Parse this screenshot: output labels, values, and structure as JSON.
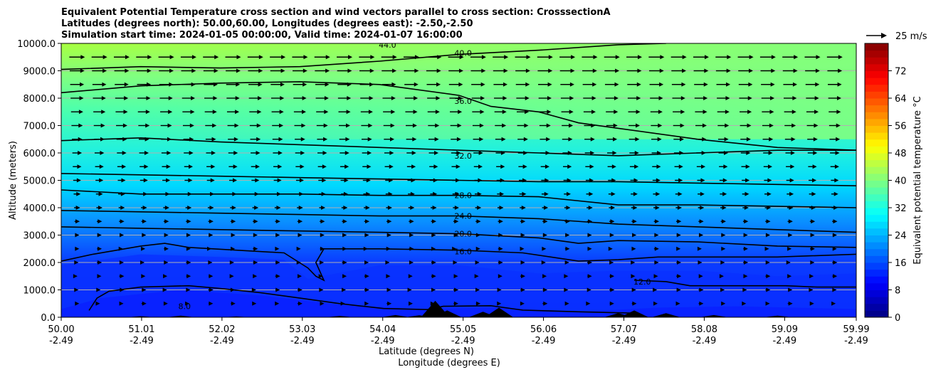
{
  "chart_data": {
    "type": "heatmap",
    "title_lines": [
      "Equivalent Potential Temperature cross section and wind vectors parallel to cross section: CrosssectionA",
      "Latitudes (degrees north): 50.00,60.00, Longitudes (degrees east): -2.50,-2.50",
      "Simulation start time: 2024-01-05 00:00:00, Valid time: 2024-01-07 16:00:00"
    ],
    "xlabel_line1": "Latitude (degrees N)",
    "xlabel_line2": "Longitude (degrees E)",
    "ylabel": "Altitude (meters)",
    "xlim": [
      50.0,
      59.99
    ],
    "ylim": [
      0,
      10000
    ],
    "x_ticks": [
      {
        "lat": "50.00",
        "lon": "-2.49",
        "value": 50.0
      },
      {
        "lat": "51.01",
        "lon": "-2.49",
        "value": 51.01
      },
      {
        "lat": "52.02",
        "lon": "-2.49",
        "value": 52.02
      },
      {
        "lat": "53.03",
        "lon": "-2.49",
        "value": 53.03
      },
      {
        "lat": "54.04",
        "lon": "-2.49",
        "value": 54.04
      },
      {
        "lat": "55.05",
        "lon": "-2.49",
        "value": 55.05
      },
      {
        "lat": "56.06",
        "lon": "-2.49",
        "value": 56.06
      },
      {
        "lat": "57.07",
        "lon": "-2.49",
        "value": 57.07
      },
      {
        "lat": "58.08",
        "lon": "-2.49",
        "value": 58.08
      },
      {
        "lat": "59.09",
        "lon": "-2.49",
        "value": 59.09
      },
      {
        "lat": "59.99",
        "lon": "-2.49",
        "value": 59.99
      }
    ],
    "y_ticks": [
      {
        "label": "0.0",
        "value": 0
      },
      {
        "label": "1000.0",
        "value": 1000
      },
      {
        "label": "2000.0",
        "value": 2000
      },
      {
        "label": "3000.0",
        "value": 3000
      },
      {
        "label": "4000.0",
        "value": 4000
      },
      {
        "label": "5000.0",
        "value": 5000
      },
      {
        "label": "6000.0",
        "value": 6000
      },
      {
        "label": "7000.0",
        "value": 7000
      },
      {
        "label": "8000.0",
        "value": 8000
      },
      {
        "label": "9000.0",
        "value": 9000
      },
      {
        "label": "10000.0",
        "value": 10000
      }
    ],
    "grid": "horizontal",
    "colorbar": {
      "label": "Equivalent potential temperature °C",
      "range": [
        0,
        80
      ],
      "ticks": [
        {
          "label": "0",
          "value": 0
        },
        {
          "label": "8",
          "value": 8
        },
        {
          "label": "16",
          "value": 16
        },
        {
          "label": "24",
          "value": 24
        },
        {
          "label": "32",
          "value": 32
        },
        {
          "label": "40",
          "value": 40
        },
        {
          "label": "48",
          "value": 48
        },
        {
          "label": "56",
          "value": 56
        },
        {
          "label": "64",
          "value": 64
        },
        {
          "label": "72",
          "value": 72
        }
      ],
      "colormap": "jet",
      "placement": "right"
    },
    "wind_reference": {
      "label": "25 m/s",
      "speed": 25,
      "placement": "top-right"
    },
    "contours": [
      {
        "level_label": "8.0",
        "label_at": [
          51.55,
          400
        ],
        "points": [
          [
            50.35,
            250
          ],
          [
            50.45,
            700
          ],
          [
            50.6,
            950
          ],
          [
            51.0,
            1100
          ],
          [
            51.6,
            1150
          ],
          [
            52.0,
            1050
          ],
          [
            52.5,
            900
          ],
          [
            53.0,
            700
          ],
          [
            53.5,
            500
          ],
          [
            53.8,
            400
          ],
          [
            54.05,
            320
          ],
          [
            54.6,
            280
          ],
          [
            54.8,
            400
          ],
          [
            55.4,
            420
          ],
          [
            55.8,
            260
          ],
          [
            56.5,
            200
          ],
          [
            57.2,
            150
          ]
        ]
      },
      {
        "level_label": "12.0",
        "label_at": [
          57.3,
          1300
        ],
        "points": [
          [
            57.2,
            1350
          ],
          [
            57.6,
            1300
          ],
          [
            57.9,
            1150
          ],
          [
            58.2,
            1150
          ],
          [
            58.6,
            1150
          ],
          [
            59.1,
            1150
          ],
          [
            59.5,
            1100
          ],
          [
            59.99,
            1100
          ]
        ]
      },
      {
        "level_label": "16.0",
        "label_at": [
          55.05,
          2400
        ],
        "points": [
          [
            50.0,
            2050
          ],
          [
            50.4,
            2300
          ],
          [
            51.0,
            2600
          ],
          [
            51.3,
            2700
          ],
          [
            51.6,
            2550
          ],
          [
            52.2,
            2450
          ],
          [
            52.8,
            2350
          ],
          [
            53.1,
            1800
          ],
          [
            53.2,
            1500
          ],
          [
            53.3,
            1350
          ],
          [
            53.2,
            2000
          ],
          [
            53.3,
            2500
          ],
          [
            54.0,
            2500
          ],
          [
            55.0,
            2450
          ],
          [
            55.8,
            2350
          ],
          [
            56.5,
            2050
          ],
          [
            57.0,
            2100
          ],
          [
            57.5,
            2200
          ],
          [
            58.0,
            2200
          ],
          [
            59.0,
            2200
          ],
          [
            59.99,
            2300
          ]
        ]
      },
      {
        "level_label": "20.0",
        "label_at": [
          55.05,
          3050
        ],
        "points": [
          [
            50.0,
            3300
          ],
          [
            51.0,
            3250
          ],
          [
            52.0,
            3200
          ],
          [
            53.0,
            3150
          ],
          [
            54.0,
            3100
          ],
          [
            55.0,
            3050
          ],
          [
            56.0,
            2900
          ],
          [
            56.5,
            2700
          ],
          [
            57.0,
            2800
          ],
          [
            58.0,
            2750
          ],
          [
            59.0,
            2600
          ],
          [
            59.99,
            2550
          ]
        ]
      },
      {
        "level_label": "24.0",
        "label_at": [
          55.05,
          3700
        ],
        "points": [
          [
            50.0,
            3900
          ],
          [
            51.0,
            3850
          ],
          [
            52.0,
            3800
          ],
          [
            53.0,
            3750
          ],
          [
            54.0,
            3700
          ],
          [
            55.0,
            3700
          ],
          [
            56.0,
            3600
          ],
          [
            57.0,
            3400
          ],
          [
            58.0,
            3300
          ],
          [
            59.0,
            3200
          ],
          [
            59.99,
            3100
          ]
        ]
      },
      {
        "level_label": "28.0",
        "label_at": [
          55.05,
          4450
        ],
        "points": [
          [
            50.0,
            4650
          ],
          [
            51.0,
            4500
          ],
          [
            52.0,
            4500
          ],
          [
            53.0,
            4500
          ],
          [
            54.0,
            4450
          ],
          [
            55.0,
            4450
          ],
          [
            56.0,
            4400
          ],
          [
            57.0,
            4100
          ],
          [
            58.0,
            4100
          ],
          [
            59.0,
            4050
          ],
          [
            59.99,
            4000
          ]
        ]
      },
      {
        "level_label": "32.0",
        "label_at": [
          55.05,
          5900
        ],
        "points": [
          [
            50.0,
            5250
          ],
          [
            51.0,
            5200
          ],
          [
            52.0,
            5150
          ],
          [
            53.0,
            5100
          ],
          [
            54.0,
            5050
          ],
          [
            55.0,
            5000
          ],
          [
            56.0,
            4950
          ],
          [
            57.0,
            4950
          ],
          [
            58.0,
            4900
          ],
          [
            59.0,
            4850
          ],
          [
            59.99,
            4800
          ]
        ]
      },
      {
        "level_label": "36.0",
        "label_at": [
          55.05,
          7900
        ],
        "points": [
          [
            50.0,
            6450
          ],
          [
            51.0,
            6550
          ],
          [
            52.0,
            6400
          ],
          [
            53.0,
            6300
          ],
          [
            54.0,
            6200
          ],
          [
            55.0,
            6100
          ],
          [
            56.0,
            6000
          ],
          [
            57.0,
            5900
          ],
          [
            58.0,
            6000
          ],
          [
            59.0,
            6100
          ],
          [
            59.99,
            6100
          ]
        ]
      },
      {
        "level_label": "40.0",
        "label_at": [
          55.05,
          9650
        ],
        "points": [
          [
            50.0,
            8200
          ],
          [
            51.0,
            8450
          ],
          [
            52.0,
            8550
          ],
          [
            53.0,
            8600
          ],
          [
            54.0,
            8500
          ],
          [
            55.0,
            8100
          ],
          [
            55.4,
            7700
          ],
          [
            56.0,
            7500
          ],
          [
            56.5,
            7100
          ],
          [
            57.0,
            6900
          ],
          [
            58.0,
            6500
          ],
          [
            59.0,
            6200
          ],
          [
            59.99,
            6100
          ]
        ]
      },
      {
        "level_label": "44.0",
        "label_at": [
          54.1,
          9950
        ],
        "points": [
          [
            50.0,
            9050
          ],
          [
            51.0,
            9150
          ],
          [
            52.0,
            9100
          ],
          [
            53.0,
            9150
          ],
          [
            54.0,
            9350
          ],
          [
            55.0,
            9600
          ],
          [
            56.0,
            9750
          ],
          [
            57.0,
            9950
          ],
          [
            57.6,
            10000
          ]
        ]
      }
    ],
    "terrain": {
      "color": "#000000"
    }
  }
}
